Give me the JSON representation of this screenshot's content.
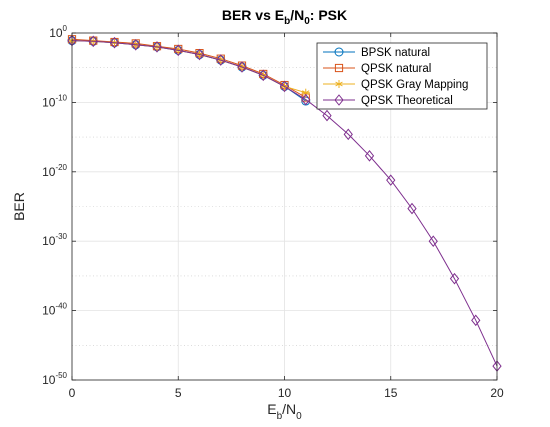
{
  "chart_data": {
    "type": "line",
    "title": {
      "prefix": "BER vs E",
      "sub1": "b",
      "mid": "/N",
      "sub2": "0",
      "suffix": ": PSK"
    },
    "xlabel": {
      "main": "E",
      "sub1": "b",
      "mid": "/N",
      "sub2": "0"
    },
    "ylabel": "BER",
    "xlim": [
      0,
      20
    ],
    "ylim": [
      -50,
      0
    ],
    "yscale": "log",
    "grid": true,
    "legend_position": "top-right",
    "xticks": [
      0,
      5,
      10,
      15,
      20
    ],
    "yticks": [
      {
        "exp": -50,
        "base": "10",
        "sup": "-50"
      },
      {
        "exp": -40,
        "base": "10",
        "sup": "-40"
      },
      {
        "exp": -30,
        "base": "10",
        "sup": "-30"
      },
      {
        "exp": -20,
        "base": "10",
        "sup": "-20"
      },
      {
        "exp": -10,
        "base": "10",
        "sup": "-10"
      },
      {
        "exp": 0,
        "base": "10",
        "sup": "0"
      }
    ],
    "series": [
      {
        "name": "BPSK natural",
        "color": "#0072bd",
        "marker": "circle",
        "x": [
          0,
          1,
          2,
          3,
          4,
          5,
          6,
          7,
          8,
          9,
          10,
          11
        ],
        "log10_y": [
          -1.1,
          -1.2,
          -1.4,
          -1.7,
          -2.0,
          -2.5,
          -3.1,
          -3.9,
          -4.9,
          -6.1,
          -7.7,
          -9.8
        ]
      },
      {
        "name": "QPSK natural",
        "color": "#d95319",
        "marker": "square",
        "x": [
          0,
          1,
          2,
          3,
          4,
          5,
          6,
          7,
          8,
          9,
          10,
          11
        ],
        "log10_y": [
          -0.9,
          -1.1,
          -1.3,
          -1.5,
          -1.9,
          -2.3,
          -2.9,
          -3.7,
          -4.7,
          -5.9,
          -7.5,
          -9.3
        ]
      },
      {
        "name": "QPSK Gray Mapping",
        "color": "#edb120",
        "marker": "star",
        "x": [
          0,
          1,
          2,
          3,
          4,
          5,
          6,
          7,
          8,
          9,
          10,
          11
        ],
        "log10_y": [
          -1.1,
          -1.2,
          -1.4,
          -1.7,
          -2.0,
          -2.5,
          -3.1,
          -3.9,
          -4.9,
          -6.1,
          -7.7,
          -8.6
        ]
      },
      {
        "name": "QPSK Theoretical",
        "color": "#7e2f8e",
        "marker": "diamond",
        "x": [
          0,
          1,
          2,
          3,
          4,
          5,
          6,
          7,
          8,
          9,
          10,
          11,
          12,
          13,
          14,
          15,
          16,
          17,
          18,
          19,
          20
        ],
        "log10_y": [
          -1.1,
          -1.2,
          -1.4,
          -1.7,
          -2.0,
          -2.5,
          -3.1,
          -3.9,
          -4.9,
          -6.1,
          -7.7,
          -9.6,
          -11.9,
          -14.6,
          -17.7,
          -21.2,
          -25.3,
          -30.0,
          -35.4,
          -41.4,
          -48.0
        ]
      }
    ]
  }
}
